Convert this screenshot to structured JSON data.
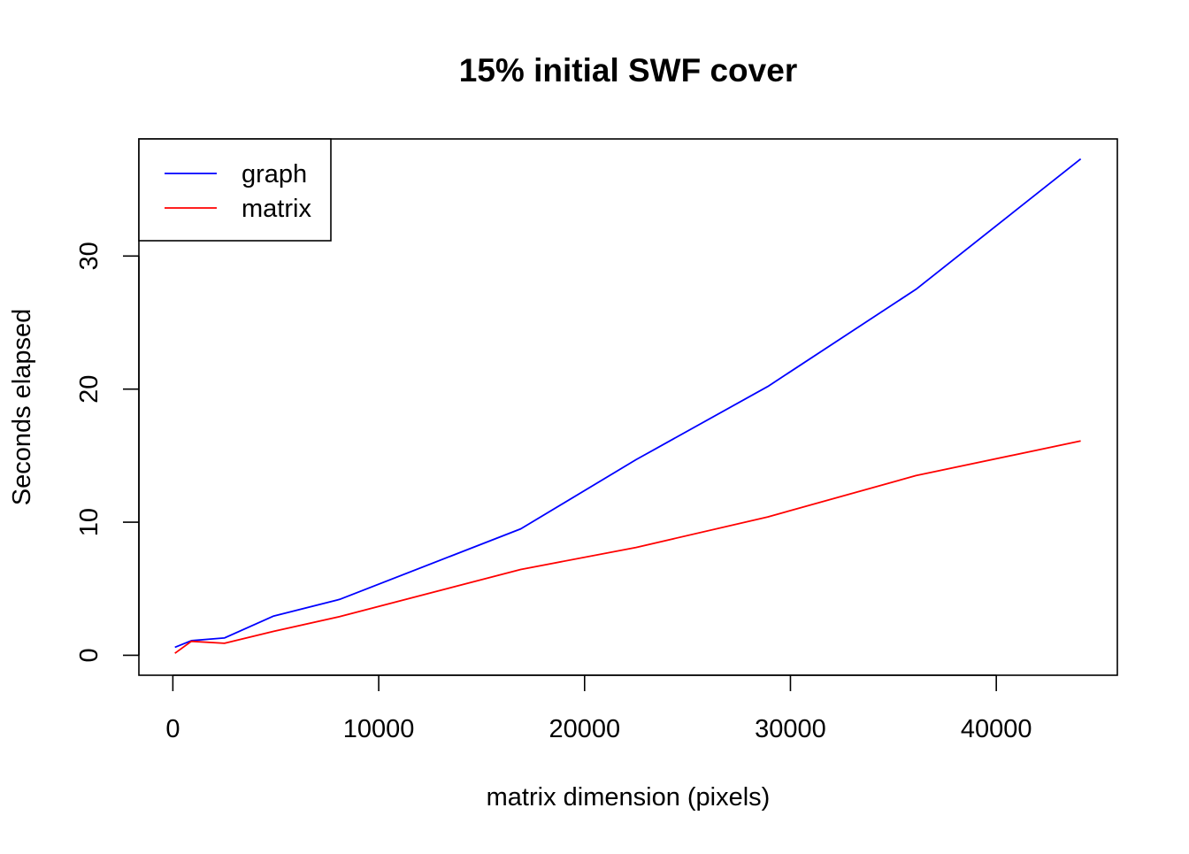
{
  "chart_data": {
    "type": "line",
    "title": "15% initial SWF cover",
    "xlabel": "matrix dimension (pixels)",
    "ylabel": "Seconds elapsed",
    "xlim": [
      -1650,
      45880
    ],
    "ylim": [
      -1.5,
      38.8
    ],
    "x_ticks": [
      0,
      10000,
      20000,
      30000,
      40000
    ],
    "x_tick_labels": [
      "0",
      "10000",
      "20000",
      "30000",
      "40000"
    ],
    "y_ticks": [
      0,
      10,
      20,
      30
    ],
    "y_tick_labels": [
      "0",
      "10",
      "20",
      "30"
    ],
    "grid": false,
    "legend_position": "top-left",
    "x": [
      100,
      900,
      2500,
      4900,
      8100,
      16900,
      22500,
      28900,
      36100,
      44100
    ],
    "series": [
      {
        "name": "graph",
        "color": "#0000ff",
        "values": [
          0.6,
          1.1,
          1.3,
          2.95,
          4.2,
          9.5,
          14.7,
          20.2,
          27.5,
          37.3
        ]
      },
      {
        "name": "matrix",
        "color": "#ff0000",
        "values": [
          0.15,
          1.05,
          0.9,
          1.8,
          2.9,
          6.45,
          8.1,
          10.4,
          13.5,
          16.1
        ]
      }
    ]
  }
}
